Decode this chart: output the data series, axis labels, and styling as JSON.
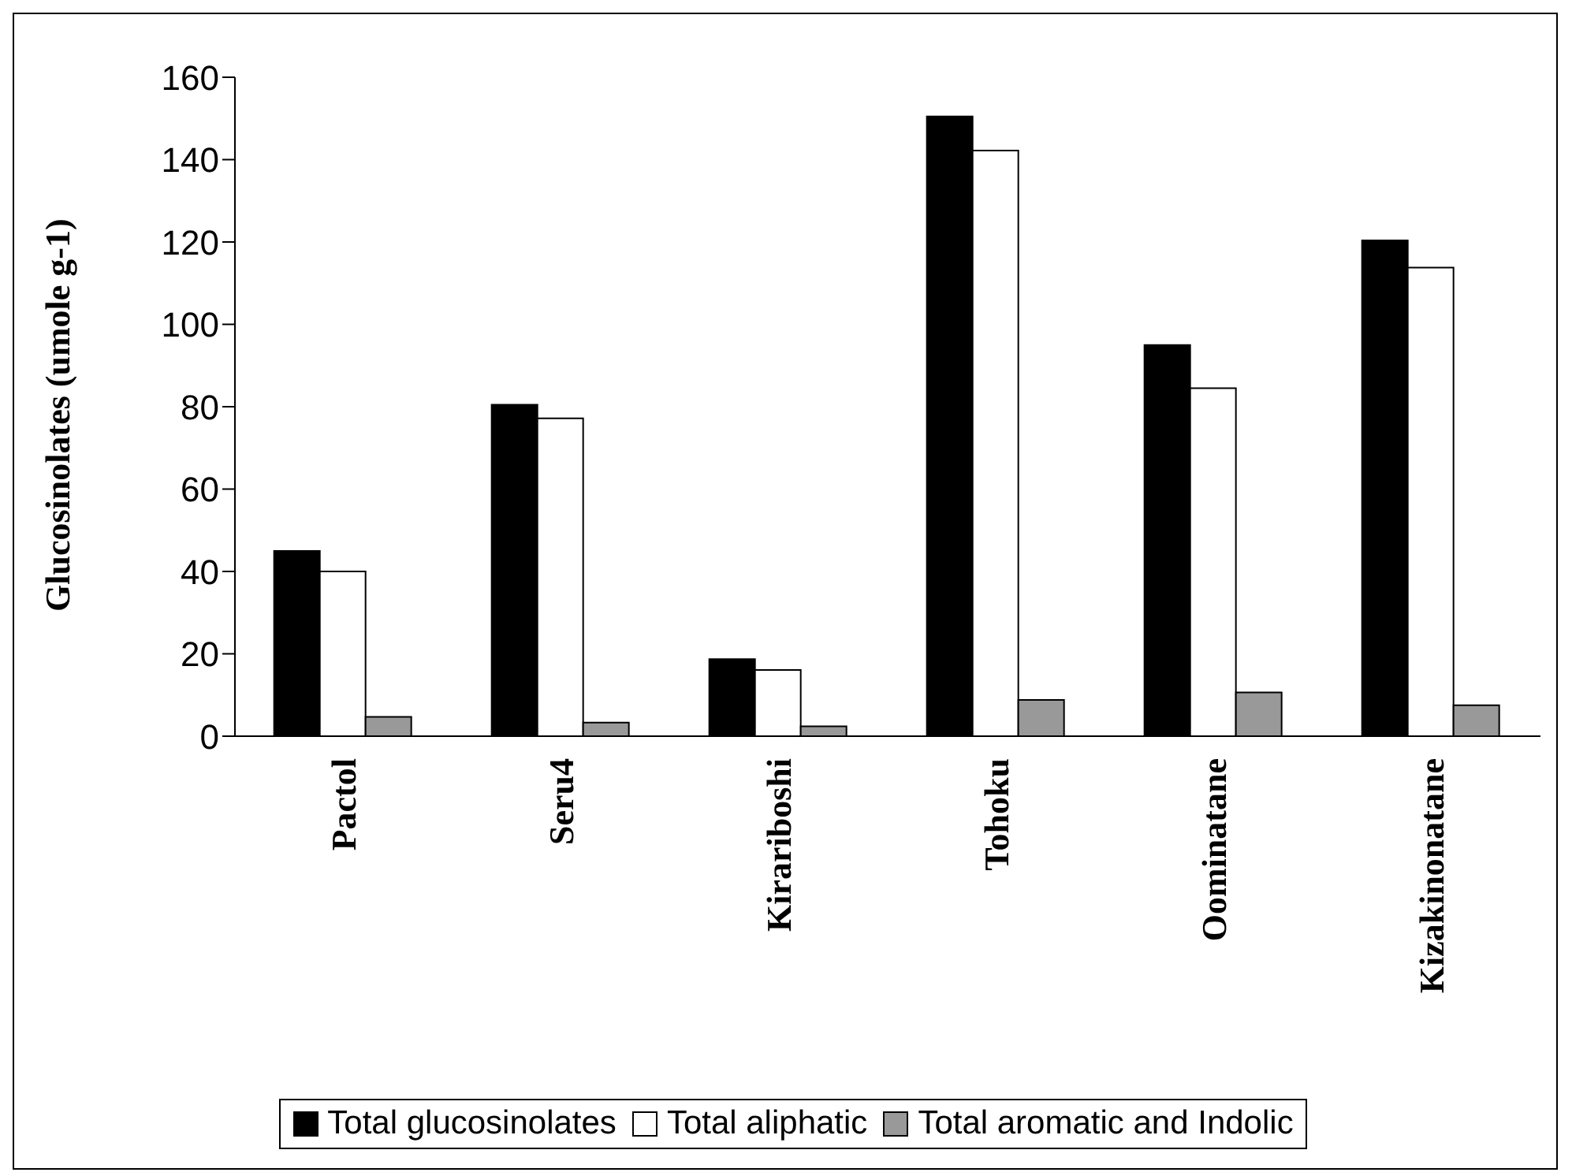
{
  "chart_data": {
    "type": "bar",
    "ylabel": "Glucosinolates (umole g-1)",
    "categories": [
      "Pactol",
      "Seru4",
      "Kirariboshi",
      "Tohoku",
      "Oominatane",
      "Kizakinonatane"
    ],
    "series": [
      {
        "name": "Total glucosinolates",
        "color": "#000000",
        "values": [
          45,
          80.5,
          18.7,
          150.5,
          95,
          120.4
        ]
      },
      {
        "name": "Total aliphatic",
        "color": "#ffffff",
        "values": [
          40,
          77.2,
          16.1,
          142.2,
          84.5,
          113.8
        ]
      },
      {
        "name": "Total aromatic and Indolic",
        "color": "#999999",
        "values": [
          4.7,
          3.3,
          2.4,
          8.8,
          10.6,
          7.5
        ]
      }
    ],
    "ylim": [
      0,
      160
    ],
    "yticks": [
      0,
      20,
      40,
      60,
      80,
      100,
      120,
      140,
      160
    ],
    "grid": false,
    "legend": "bottom"
  }
}
